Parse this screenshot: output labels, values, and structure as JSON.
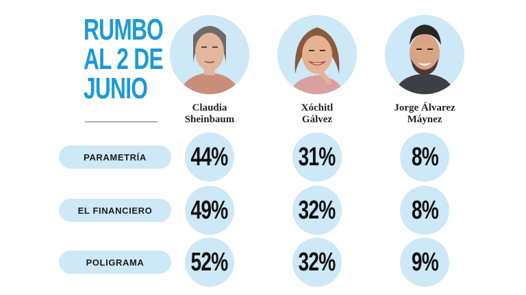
{
  "header": {
    "title_lines": [
      "RUMBO",
      "AL 2 DE",
      "JUNIO"
    ]
  },
  "candidates": [
    {
      "name_lines": [
        "Claudia",
        "Sheinbaum"
      ],
      "photo": "claudia-sheinbaum-photo"
    },
    {
      "name_lines": [
        "Xóchitl",
        "Gálvez"
      ],
      "photo": "xochitl-galvez-photo"
    },
    {
      "name_lines": [
        "Jorge Álvarez",
        "Máynez"
      ],
      "photo": "jorge-alvarez-maynez-photo"
    }
  ],
  "colors": {
    "accent": "#1b9ad6",
    "bubble": "#cde8f7",
    "text": "#111111"
  },
  "chart_data": {
    "type": "table",
    "title": "RUMBO AL 2 DE JUNIO",
    "columns": [
      "Claudia Sheinbaum",
      "Xóchitl Gálvez",
      "Jorge Álvarez Máynez"
    ],
    "rows": [
      {
        "pollster": "PARAMETRÍA",
        "values": [
          44,
          31,
          8
        ],
        "labels": [
          "44%",
          "31%",
          "8%"
        ]
      },
      {
        "pollster": "EL FINANCIERO",
        "values": [
          49,
          32,
          8
        ],
        "labels": [
          "49%",
          "32%",
          "8%"
        ]
      },
      {
        "pollster": "POLIGRAMA",
        "values": [
          52,
          32,
          9
        ],
        "labels": [
          "52%",
          "32%",
          "9%"
        ]
      }
    ],
    "unit": "%"
  }
}
